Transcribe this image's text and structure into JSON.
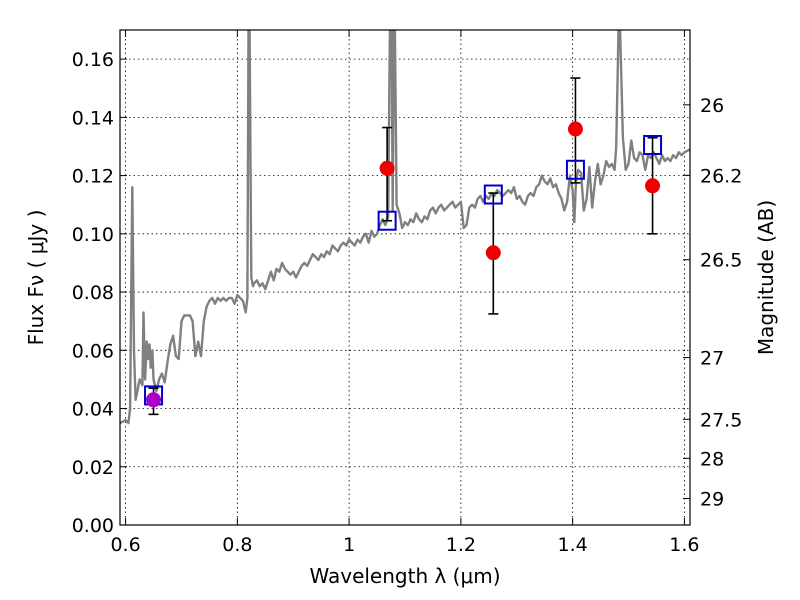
{
  "chart_data": {
    "type": "scatter",
    "xlabel": "Wavelength  λ (μm)",
    "ylabel": "Flux  Fν ( μJy )",
    "ylabel_right": "Magnitude (AB)",
    "xlim": [
      0.59,
      1.61
    ],
    "ylim": [
      0.0,
      0.17
    ],
    "grid": true,
    "x_ticks": [
      0.6,
      0.8,
      1.0,
      1.2,
      1.4,
      1.6
    ],
    "x_tick_labels": [
      "0.6",
      "0.8",
      "1",
      "1.2",
      "1.4",
      "1.6"
    ],
    "y_ticks": [
      0.0,
      0.02,
      0.04,
      0.06,
      0.08,
      0.1,
      0.12,
      0.14,
      0.16
    ],
    "y_tick_labels": [
      "0.00",
      "0.02",
      "0.04",
      "0.06",
      "0.08",
      "0.10",
      "0.12",
      "0.14",
      "0.16"
    ],
    "right_ticks": [
      {
        "label": "26",
        "flux": 0.1443
      },
      {
        "label": "26.2",
        "flux": 0.1201
      },
      {
        "label": "26.5",
        "flux": 0.0911
      },
      {
        "label": "27",
        "flux": 0.0575
      },
      {
        "label": "27.5",
        "flux": 0.0363
      },
      {
        "label": "28",
        "flux": 0.0229
      },
      {
        "label": "29",
        "flux": 0.0091
      }
    ],
    "series": [
      {
        "kind": "spectrum",
        "color": "#808080",
        "x": [
          0.59,
          0.6,
          0.605,
          0.608,
          0.612,
          0.615,
          0.618,
          0.62,
          0.625,
          0.63,
          0.632,
          0.635,
          0.638,
          0.64,
          0.643,
          0.645,
          0.648,
          0.65,
          0.655,
          0.66,
          0.665,
          0.67,
          0.675,
          0.68,
          0.685,
          0.69,
          0.695,
          0.7,
          0.705,
          0.71,
          0.715,
          0.72,
          0.725,
          0.73,
          0.735,
          0.74,
          0.745,
          0.75,
          0.755,
          0.76,
          0.765,
          0.77,
          0.775,
          0.78,
          0.785,
          0.79,
          0.795,
          0.8,
          0.805,
          0.81,
          0.815,
          0.818,
          0.82,
          0.822,
          0.825,
          0.828,
          0.83,
          0.835,
          0.84,
          0.845,
          0.85,
          0.855,
          0.86,
          0.865,
          0.87,
          0.875,
          0.88,
          0.885,
          0.89,
          0.895,
          0.9,
          0.905,
          0.91,
          0.915,
          0.92,
          0.925,
          0.93,
          0.935,
          0.94,
          0.945,
          0.95,
          0.955,
          0.96,
          0.965,
          0.97,
          0.975,
          0.98,
          0.985,
          0.99,
          0.995,
          1.0,
          1.005,
          1.01,
          1.015,
          1.02,
          1.025,
          1.03,
          1.035,
          1.04,
          1.045,
          1.05,
          1.055,
          1.06,
          1.065,
          1.07,
          1.073,
          1.076,
          1.078,
          1.08,
          1.082,
          1.085,
          1.09,
          1.095,
          1.1,
          1.105,
          1.11,
          1.115,
          1.12,
          1.125,
          1.13,
          1.135,
          1.14,
          1.145,
          1.15,
          1.155,
          1.16,
          1.165,
          1.17,
          1.175,
          1.18,
          1.185,
          1.19,
          1.195,
          1.2,
          1.205,
          1.21,
          1.215,
          1.22,
          1.225,
          1.23,
          1.235,
          1.24,
          1.245,
          1.25,
          1.255,
          1.26,
          1.265,
          1.27,
          1.275,
          1.28,
          1.285,
          1.29,
          1.295,
          1.3,
          1.305,
          1.31,
          1.315,
          1.32,
          1.325,
          1.33,
          1.335,
          1.34,
          1.345,
          1.35,
          1.355,
          1.36,
          1.365,
          1.37,
          1.375,
          1.38,
          1.385,
          1.39,
          1.395,
          1.4,
          1.403,
          1.406,
          1.41,
          1.415,
          1.42,
          1.425,
          1.43,
          1.435,
          1.44,
          1.445,
          1.45,
          1.455,
          1.46,
          1.465,
          1.47,
          1.475,
          1.478,
          1.48,
          1.482,
          1.485,
          1.49,
          1.495,
          1.5,
          1.505,
          1.51,
          1.515,
          1.52,
          1.525,
          1.53,
          1.535,
          1.54,
          1.545,
          1.55,
          1.555,
          1.56,
          1.565,
          1.57,
          1.575,
          1.58,
          1.585,
          1.59,
          1.595,
          1.6,
          1.61
        ],
        "y": [
          0.035,
          0.036,
          0.035,
          0.04,
          0.116,
          0.06,
          0.043,
          0.045,
          0.05,
          0.048,
          0.073,
          0.05,
          0.063,
          0.057,
          0.062,
          0.054,
          0.06,
          0.05,
          0.046,
          0.05,
          0.052,
          0.049,
          0.056,
          0.062,
          0.065,
          0.058,
          0.057,
          0.07,
          0.072,
          0.072,
          0.072,
          0.07,
          0.058,
          0.063,
          0.058,
          0.07,
          0.075,
          0.077,
          0.078,
          0.076,
          0.078,
          0.077,
          0.078,
          0.077,
          0.078,
          0.078,
          0.076,
          0.079,
          0.078,
          0.077,
          0.073,
          0.078,
          0.17,
          0.17,
          0.085,
          0.082,
          0.083,
          0.084,
          0.082,
          0.083,
          0.081,
          0.084,
          0.087,
          0.084,
          0.088,
          0.087,
          0.09,
          0.088,
          0.087,
          0.086,
          0.087,
          0.085,
          0.087,
          0.089,
          0.09,
          0.089,
          0.091,
          0.093,
          0.092,
          0.091,
          0.093,
          0.092,
          0.094,
          0.093,
          0.096,
          0.095,
          0.094,
          0.096,
          0.097,
          0.096,
          0.098,
          0.097,
          0.096,
          0.098,
          0.097,
          0.099,
          0.1,
          0.097,
          0.101,
          0.099,
          0.1,
          0.103,
          0.105,
          0.103,
          0.106,
          0.17,
          0.17,
          0.108,
          0.17,
          0.17,
          0.11,
          0.107,
          0.102,
          0.104,
          0.103,
          0.105,
          0.104,
          0.107,
          0.105,
          0.104,
          0.106,
          0.105,
          0.108,
          0.109,
          0.107,
          0.109,
          0.11,
          0.108,
          0.109,
          0.11,
          0.111,
          0.109,
          0.11,
          0.111,
          0.102,
          0.103,
          0.109,
          0.11,
          0.109,
          0.112,
          0.113,
          0.111,
          0.113,
          0.112,
          0.114,
          0.113,
          0.115,
          0.114,
          0.113,
          0.114,
          0.115,
          0.114,
          0.116,
          0.112,
          0.113,
          0.111,
          0.11,
          0.113,
          0.114,
          0.113,
          0.116,
          0.117,
          0.12,
          0.118,
          0.117,
          0.119,
          0.116,
          0.117,
          0.114,
          0.112,
          0.108,
          0.111,
          0.12,
          0.115,
          0.104,
          0.118,
          0.122,
          0.121,
          0.108,
          0.112,
          0.123,
          0.109,
          0.118,
          0.124,
          0.117,
          0.12,
          0.125,
          0.123,
          0.124,
          0.122,
          0.13,
          0.15,
          0.17,
          0.17,
          0.133,
          0.122,
          0.124,
          0.132,
          0.126,
          0.125,
          0.128,
          0.127,
          0.122,
          0.127,
          0.126,
          0.128,
          0.126,
          0.124,
          0.127,
          0.125,
          0.126,
          0.125,
          0.127,
          0.126,
          0.128,
          0.127,
          0.128,
          0.129
        ]
      },
      {
        "kind": "model-points",
        "marker": "open-square",
        "color": "#0000cc",
        "x": [
          0.65,
          1.068,
          1.258,
          1.405,
          1.543
        ],
        "y": [
          0.0445,
          0.1045,
          0.1135,
          0.122,
          0.1305
        ]
      },
      {
        "kind": "observed-points",
        "marker": "filled-circle",
        "color": "#ee0000",
        "x": [
          0.65,
          1.068,
          1.258,
          1.405,
          1.543
        ],
        "y": [
          0.043,
          0.1225,
          0.0935,
          0.136,
          0.1165
        ],
        "yerr_low": [
          0.038,
          0.1045,
          0.0725,
          0.1175,
          0.1
        ],
        "yerr_high": [
          0.047,
          0.1365,
          0.114,
          0.1535,
          0.133
        ],
        "point_colors": [
          "#aa00cc",
          "#ee0000",
          "#ee0000",
          "#ee0000",
          "#ee0000"
        ]
      }
    ]
  }
}
